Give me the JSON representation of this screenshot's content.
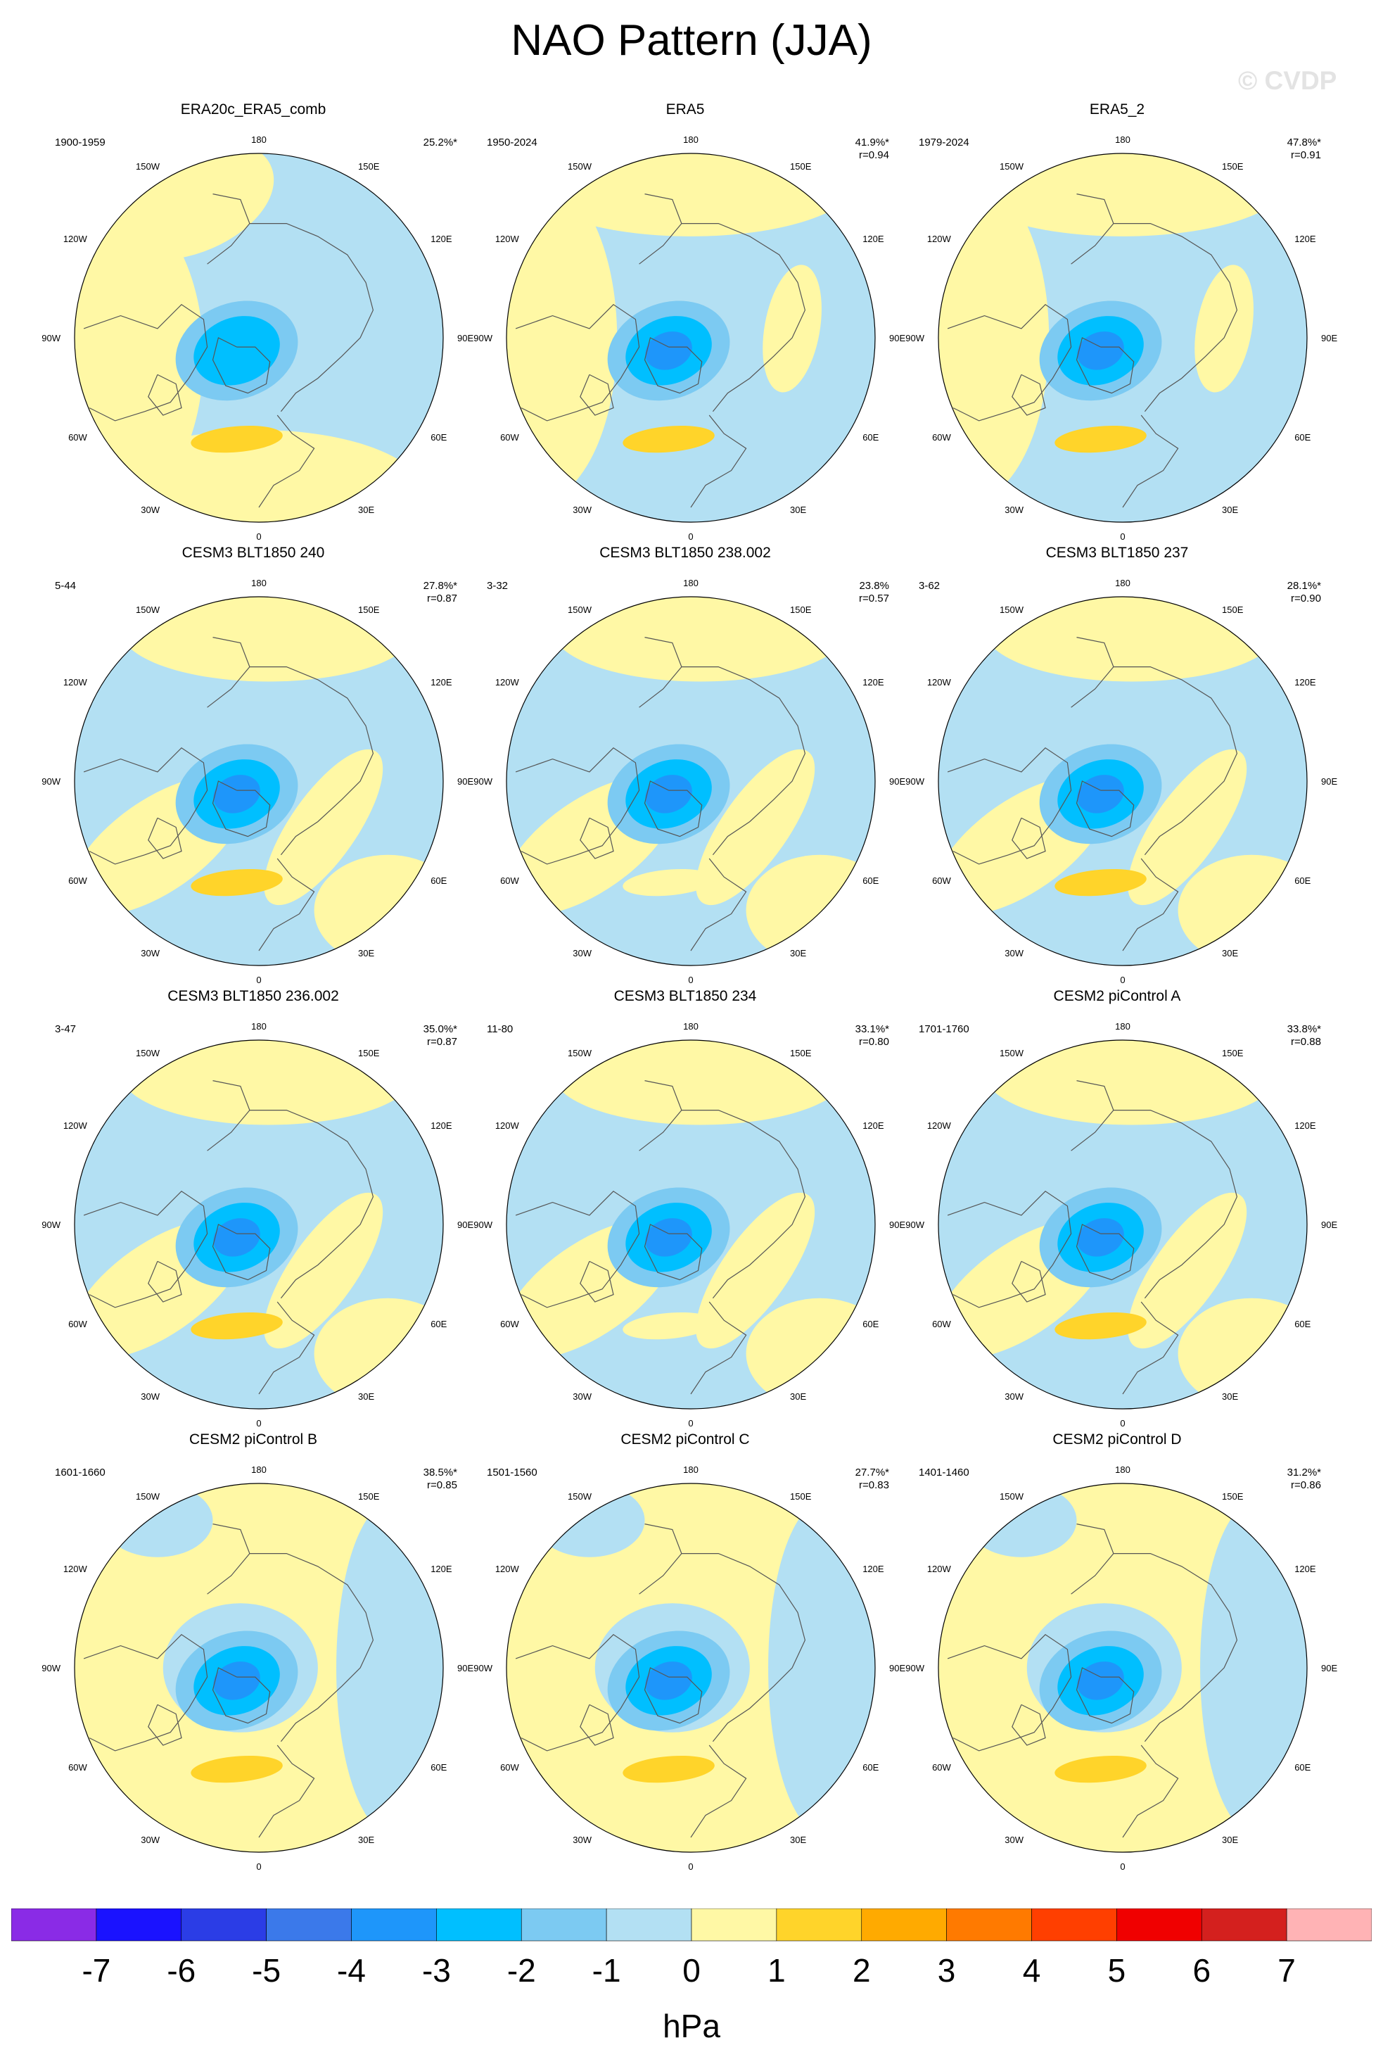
{
  "figure": {
    "title": "NAO Pattern (JJA)",
    "watermark": "© CVDP",
    "units": "hPa"
  },
  "colors": {
    "levels": [
      -7,
      -6,
      -5,
      -4,
      -3,
      -2,
      -1,
      0,
      1,
      2,
      3,
      4,
      5,
      6,
      7
    ],
    "palette": [
      "#8a2be6",
      "#1a12ff",
      "#2b3de6",
      "#3b79ea",
      "#1e96fa",
      "#00bfff",
      "#7ccaf2",
      "#b3e0f3",
      "#fff8a5",
      "#ffd42a",
      "#ffaa00",
      "#ff7a00",
      "#ff3f00",
      "#f00000",
      "#d4201e",
      "#ffb3b5"
    ],
    "coastline": "#555555",
    "frame": "#000000"
  },
  "chart_data": {
    "type": "map-panels",
    "projection": "north-polar-stereographic",
    "variable": "sea level pressure NAO pattern",
    "season": "JJA",
    "longitude_labels": [
      "180",
      "150E",
      "120E",
      "90E",
      "60E",
      "30E",
      "0",
      "30W",
      "60W",
      "90W",
      "120W",
      "150W"
    ],
    "colorbar": {
      "tick_labels": [
        "-7",
        "-6",
        "-5",
        "-4",
        "-3",
        "-2",
        "-1",
        "0",
        "1",
        "2",
        "3",
        "4",
        "5",
        "6",
        "7"
      ],
      "unit": "hPa"
    },
    "panels": [
      {
        "title": "ERA20c_ERA5_comb",
        "years": "1900-1959",
        "pct": "25.2%*",
        "r": "",
        "regime": "obs1",
        "center_min": -2.6,
        "south_max": 1.6
      },
      {
        "title": "ERA5",
        "years": "1950-2024",
        "pct": "41.9%*",
        "r": "r=0.94",
        "regime": "obs2",
        "center_min": -3.2,
        "south_max": 1.4
      },
      {
        "title": "ERA5_2",
        "years": "1979-2024",
        "pct": "47.8%*",
        "r": "r=0.91",
        "regime": "obs2",
        "center_min": -3.4,
        "south_max": 1.3
      },
      {
        "title": "CESM3 BLT1850 240",
        "years": "5-44",
        "pct": "27.8%*",
        "r": "r=0.87",
        "regime": "mix",
        "center_min": -3.0,
        "south_max": 1.4
      },
      {
        "title": "CESM3 BLT1850 238.002",
        "years": "3-32",
        "pct": "23.8%",
        "r": "r=0.57",
        "regime": "mix",
        "center_min": -3.0,
        "south_max": 0.9
      },
      {
        "title": "CESM3 BLT1850 237",
        "years": "3-62",
        "pct": "28.1%*",
        "r": "r=0.90",
        "regime": "mix",
        "center_min": -3.1,
        "south_max": 1.5
      },
      {
        "title": "CESM3 BLT1850 236.002",
        "years": "3-47",
        "pct": "35.0%*",
        "r": "r=0.87",
        "regime": "mix",
        "center_min": -3.0,
        "south_max": 1.3
      },
      {
        "title": "CESM3 BLT1850 234",
        "years": "11-80",
        "pct": "33.1%*",
        "r": "r=0.80",
        "regime": "mix",
        "center_min": -3.4,
        "south_max": 0.9
      },
      {
        "title": "CESM2 piControl A",
        "years": "1701-1760",
        "pct": "33.8%*",
        "r": "r=0.88",
        "regime": "mix",
        "center_min": -3.1,
        "south_max": 1.6
      },
      {
        "title": "CESM2 piControl B",
        "years": "1601-1660",
        "pct": "38.5%*",
        "r": "r=0.85",
        "regime": "yellow",
        "center_min": -3.3,
        "south_max": 1.7
      },
      {
        "title": "CESM2 piControl C",
        "years": "1501-1560",
        "pct": "27.7%*",
        "r": "r=0.83",
        "regime": "yellow",
        "center_min": -2.8,
        "south_max": 1.7
      },
      {
        "title": "CESM2 piControl D",
        "years": "1401-1460",
        "pct": "31.2%*",
        "r": "r=0.86",
        "regime": "yellow",
        "center_min": -3.3,
        "south_max": 1.6
      }
    ]
  }
}
